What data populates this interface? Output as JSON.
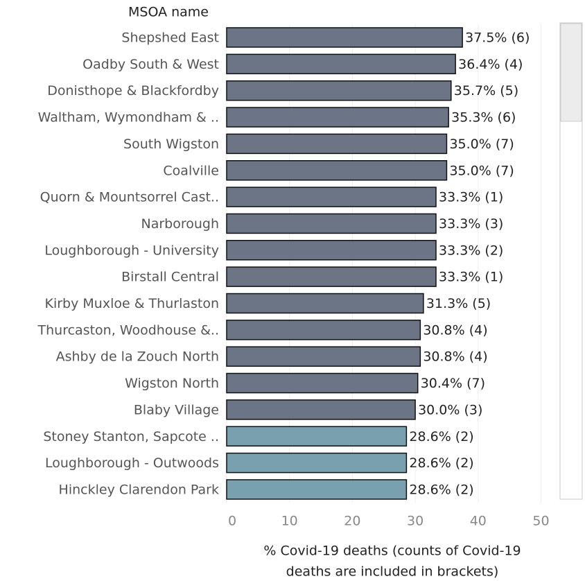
{
  "chart_data": {
    "type": "hbar",
    "y_label": "MSOA name",
    "x_label": [
      "% Covid-19 deaths (counts of Covid-19",
      "deaths are included in brackets)"
    ],
    "categories": [
      "Shepshed East",
      "Oadby South & West",
      "Donisthope & Blackfordby",
      "Waltham, Wymondham & ..",
      "South Wigston",
      "Coalville",
      "Quorn & Mountsorrel Cast..",
      "Narborough",
      "Loughborough - University",
      "Birstall Central",
      "Kirby Muxloe & Thurlaston",
      "Thurcaston, Woodhouse &..",
      "Ashby de la Zouch North",
      "Wigston North",
      "Blaby Village",
      "Stoney Stanton, Sapcote ..",
      "Loughborough - Outwoods",
      "Hinckley Clarendon Park"
    ],
    "values": [
      37.5,
      36.4,
      35.7,
      35.3,
      35.0,
      35.0,
      33.3,
      33.3,
      33.3,
      33.3,
      31.3,
      30.8,
      30.8,
      30.4,
      30.0,
      28.6,
      28.6,
      28.6
    ],
    "value_labels": [
      "37.5% (6)",
      "36.4% (4)",
      "35.7% (5)",
      "35.3% (6)",
      "35.0% (7)",
      "35.0% (7)",
      "33.3% (1)",
      "33.3% (3)",
      "33.3% (2)",
      "33.3% (1)",
      "31.3% (5)",
      "30.8% (4)",
      "30.8% (4)",
      "30.4% (7)",
      "30.0% (3)",
      "28.6% (2)",
      "28.6% (2)",
      "28.6% (2)"
    ],
    "colors": [
      "#6b7585",
      "#6b7585",
      "#6b7585",
      "#6b7585",
      "#6b7585",
      "#6b7585",
      "#6b7585",
      "#6b7585",
      "#6b7585",
      "#6b7585",
      "#6b7585",
      "#6b7585",
      "#6b7585",
      "#6b7585",
      "#6b7585",
      "#79a0ae",
      "#79a0ae",
      "#79a0ae"
    ],
    "xlim": [
      0,
      50
    ],
    "xticks": [
      0,
      10,
      20,
      30,
      40,
      50
    ],
    "grid": true
  }
}
